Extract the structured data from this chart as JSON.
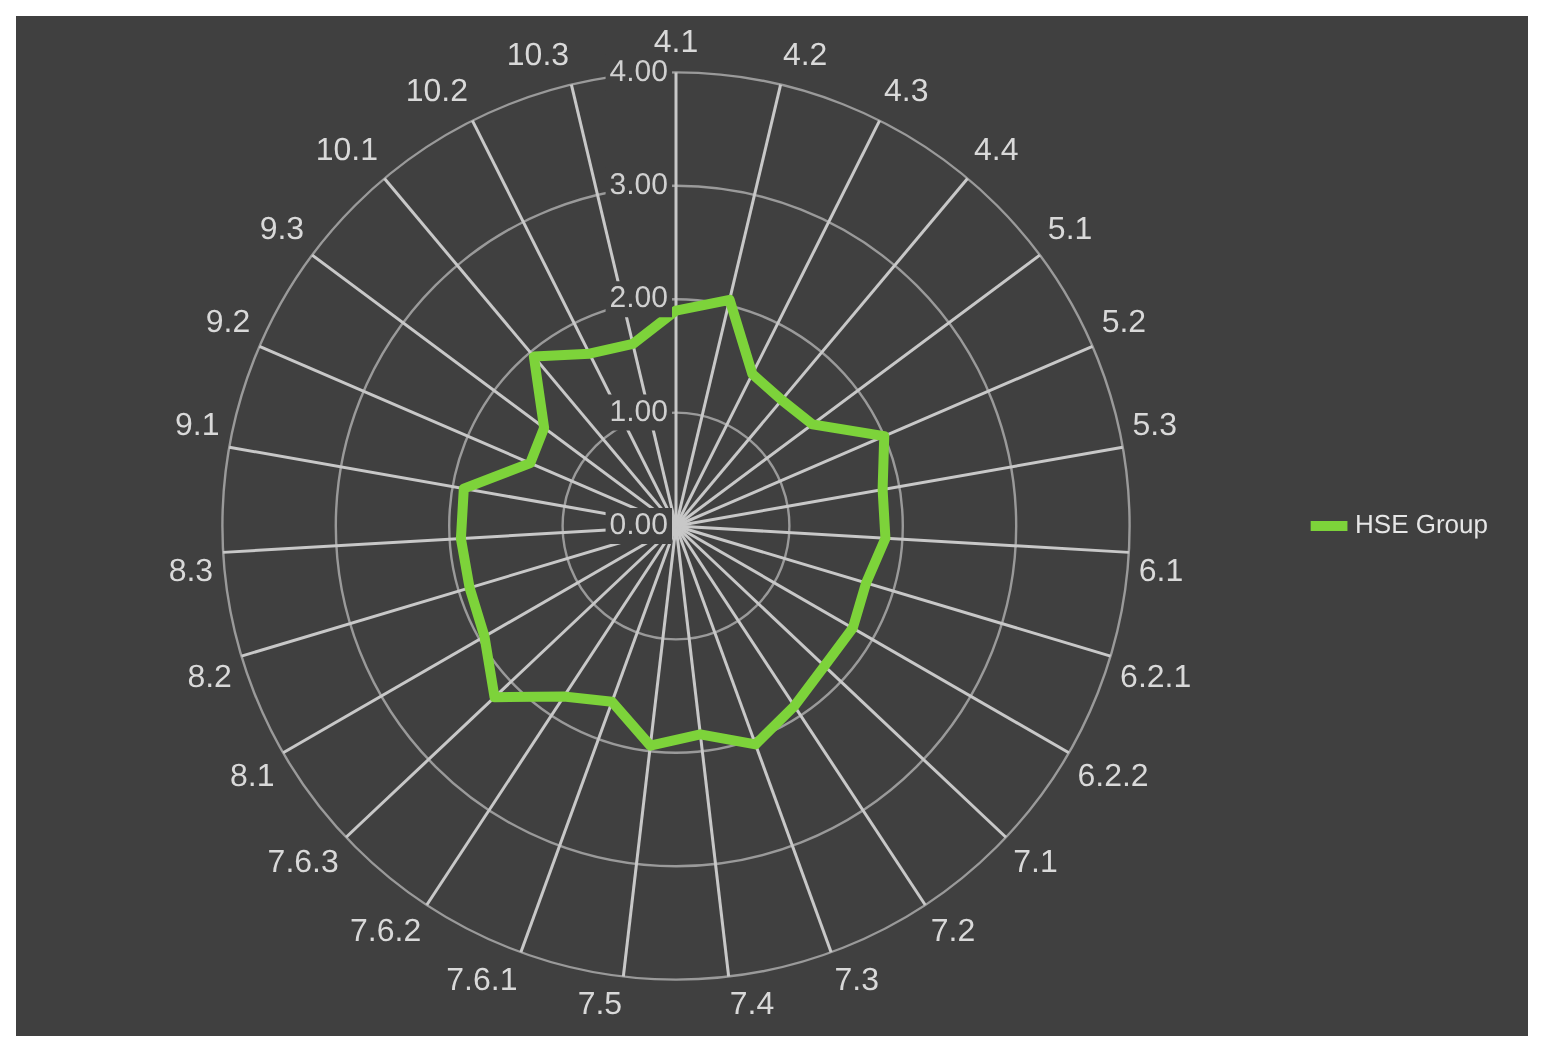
{
  "chart_data": {
    "type": "radar",
    "categories": [
      "4.1",
      "4.2",
      "4.3",
      "4.4",
      "5.1",
      "5.2",
      "5.3",
      "6.1",
      "6.2.1",
      "6.2.2",
      "7.1",
      "7.2",
      "7.3",
      "7.4",
      "7.5",
      "7.6.1",
      "7.6.2",
      "7.6.3",
      "8.1",
      "8.2",
      "8.3",
      "9.1",
      "9.2",
      "9.3",
      "10.1",
      "10.2",
      "10.3"
    ],
    "series": [
      {
        "name": "HSE Group",
        "color": "#7dd33a",
        "values": [
          1.9,
          2.05,
          1.5,
          1.45,
          1.5,
          2.0,
          1.85,
          1.85,
          1.75,
          1.8,
          1.8,
          1.9,
          2.05,
          1.85,
          1.95,
          1.65,
          1.8,
          2.2,
          1.95,
          1.9,
          1.9,
          1.9,
          1.4,
          1.45,
          1.95,
          1.7,
          1.65
        ]
      }
    ],
    "ylim": [
      0,
      4
    ],
    "yticks": [
      {
        "value": 0,
        "label": "0.00"
      },
      {
        "value": 1,
        "label": "1.00"
      },
      {
        "value": 2,
        "label": "2.00"
      },
      {
        "value": 3,
        "label": "3.00"
      },
      {
        "value": 4,
        "label": "4.00"
      }
    ],
    "grid": true,
    "legend": "right",
    "marker": "none",
    "line_style": "solid"
  }
}
